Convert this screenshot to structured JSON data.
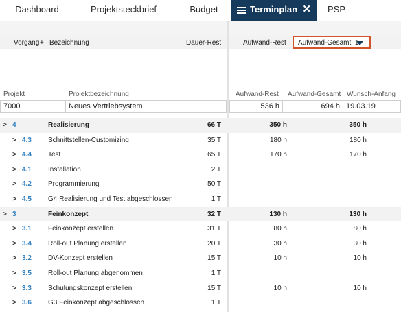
{
  "tabs": [
    {
      "label": "Dashboard"
    },
    {
      "label": "Projektsteckbrief"
    },
    {
      "label": "Budget"
    },
    {
      "label": "Terminplan"
    },
    {
      "label": "PSP"
    }
  ],
  "close_symbol": "✕",
  "header": {
    "vorgang": "Vorgang",
    "plus": "+",
    "bezeichnung": "Bezeichnung",
    "dauer_rest": "Dauer-Rest",
    "aufwand_rest": "Aufwand-Rest",
    "select_value": "Aufwand-Gesamt",
    "select_suffix": "1"
  },
  "project_header": {
    "projekt": "Projekt",
    "projektbezeichnung": "Projektbezeichnung",
    "aufwand_rest": "Aufwand-Rest",
    "aufwand_gesamt": "Aufwand-Gesamt",
    "wunsch_anfang": "Wunsch-Anfang"
  },
  "project": {
    "id": "7000",
    "name": "Neues Vertriebsystem",
    "aufwand_rest": "536 h",
    "aufwand_gesamt": "694 h",
    "wunsch_anfang": "19.03.19"
  },
  "rows": [
    {
      "code": "4",
      "name": "Realisierung",
      "dur": "66 T",
      "aufw": "350 h",
      "ges": "350 h",
      "summary": true
    },
    {
      "code": "4.3",
      "name": "Schnittstellen-Customizing",
      "dur": "35 T",
      "aufw": "180 h",
      "ges": "180 h"
    },
    {
      "code": "4.4",
      "name": "Test",
      "dur": "65 T",
      "aufw": "170 h",
      "ges": "170 h"
    },
    {
      "code": "4.1",
      "name": "Installation",
      "dur": "2 T",
      "aufw": "",
      "ges": ""
    },
    {
      "code": "4.2",
      "name": "Programmierung",
      "dur": "50 T",
      "aufw": "",
      "ges": ""
    },
    {
      "code": "4.5",
      "name": "G4 Realisierung und Test abgeschlossen",
      "dur": "1 T",
      "aufw": "",
      "ges": ""
    },
    {
      "code": "3",
      "name": "Feinkonzept",
      "dur": "32 T",
      "aufw": "130 h",
      "ges": "130 h",
      "summary": true
    },
    {
      "code": "3.1",
      "name": "Feinkonzept erstellen",
      "dur": "31 T",
      "aufw": "80 h",
      "ges": "80 h"
    },
    {
      "code": "3.4",
      "name": "Roll-out Planung erstellen",
      "dur": "20 T",
      "aufw": "30 h",
      "ges": "30 h"
    },
    {
      "code": "3.2",
      "name": "DV-Konzept erstellen",
      "dur": "15 T",
      "aufw": "10 h",
      "ges": "10 h"
    },
    {
      "code": "3.5",
      "name": "Roll-out Planung abgenommen",
      "dur": "1 T",
      "aufw": "",
      "ges": ""
    },
    {
      "code": "3.3",
      "name": "Schulungskonzept erstellen",
      "dur": "15 T",
      "aufw": "10 h",
      "ges": "10 h"
    },
    {
      "code": "3.6",
      "name": "G3 Feinkonzept abgeschlossen",
      "dur": "1 T",
      "aufw": "",
      "ges": ""
    }
  ]
}
